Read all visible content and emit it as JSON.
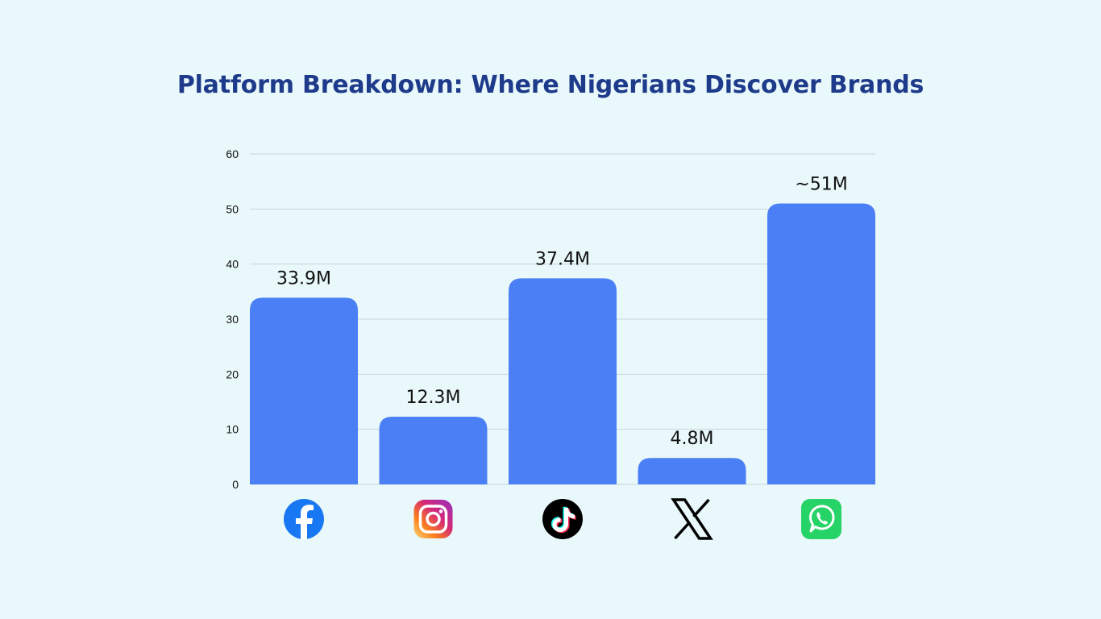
{
  "page": {
    "title": "Platform Breakdown: Where Nigerians Discover Brands"
  },
  "colors": {
    "background": "#e9f8fa",
    "title": "#1e3a8a",
    "bar": "#4a7ff5",
    "grid": "#c9d6dc",
    "facebook": "#1877f2",
    "whatsapp": "#25d366",
    "tiktok": "#000000",
    "x": "#000000"
  },
  "chart_data": {
    "type": "bar",
    "title": "Platform Breakdown: Where Nigerians Discover Brands",
    "xlabel": "",
    "ylabel": "",
    "ylim": [
      0,
      60
    ],
    "yticks": [
      0,
      10,
      20,
      30,
      40,
      50,
      60
    ],
    "grid": true,
    "categories": [
      "Facebook",
      "Instagram",
      "TikTok",
      "X",
      "WhatsApp"
    ],
    "category_icons": [
      "facebook-icon",
      "instagram-icon",
      "tiktok-icon",
      "x-icon",
      "whatsapp-icon"
    ],
    "values": [
      33.9,
      12.3,
      37.4,
      4.8,
      51
    ],
    "data_labels": [
      "33.9M",
      "12.3M",
      "37.4M",
      "4.8M",
      "~51M"
    ]
  }
}
